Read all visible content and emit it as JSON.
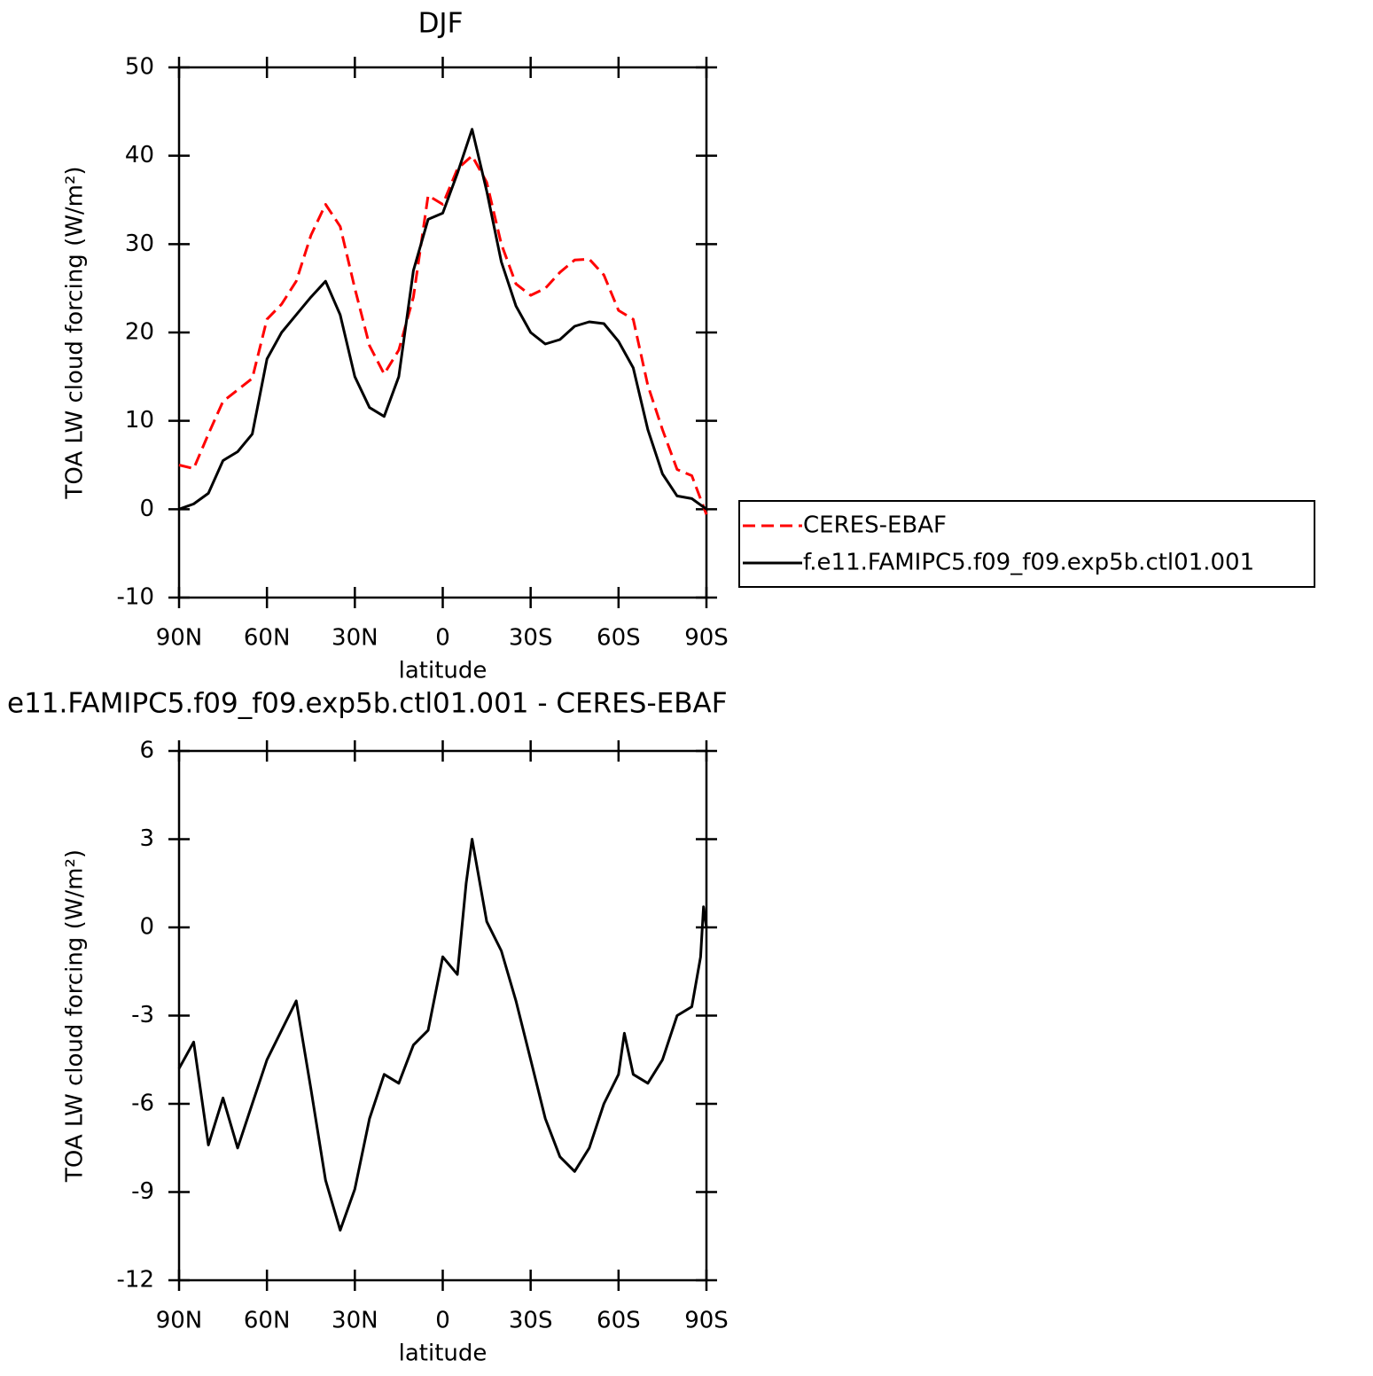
{
  "chart_data": [
    {
      "type": "line",
      "title": "DJF",
      "x_label": "latitude",
      "y_label": "TOA LW cloud forcing (W/m²)",
      "x": [
        90,
        85,
        80,
        75,
        70,
        65,
        60,
        55,
        50,
        45,
        40,
        35,
        30,
        25,
        20,
        15,
        10,
        5,
        0,
        -5,
        -10,
        -15,
        -20,
        -25,
        -30,
        -35,
        -40,
        -45,
        -50,
        -55,
        -60,
        -65,
        -70,
        -75,
        -80,
        -85,
        -90
      ],
      "series": [
        {
          "name": "CERES-EBAF",
          "color": "#ff0000",
          "dash": true,
          "values": [
            5,
            4.6,
            8.5,
            12.2,
            13.5,
            14.8,
            21.5,
            23.2,
            25.8,
            31,
            34.5,
            32,
            25,
            18.5,
            15.3,
            18,
            24,
            35.5,
            34.5,
            38.5,
            40,
            37,
            30,
            25.5,
            24.2,
            25,
            26.8,
            28.2,
            28.3,
            26.5,
            22.5,
            21.5,
            14,
            9,
            4.5,
            3.8,
            -0.6
          ]
        },
        {
          "name": "f.e11.FAMIPC5.f09_f09.exp5b.ctl01.001",
          "color": "#000000",
          "dash": false,
          "values": [
            0,
            0.6,
            1.8,
            5.5,
            6.5,
            8.5,
            17,
            20,
            22,
            24,
            25.8,
            22,
            15,
            11.5,
            10.5,
            15,
            27,
            32.8,
            33.5,
            38,
            43,
            36,
            28,
            23,
            20,
            18.7,
            19.2,
            20.7,
            21.2,
            21,
            19,
            16,
            9,
            4,
            1.5,
            1.2,
            0
          ]
        }
      ],
      "xlim": [
        90,
        -90
      ],
      "xticks": [
        {
          "value": 90,
          "label": "90N"
        },
        {
          "value": 60,
          "label": "60N"
        },
        {
          "value": 30,
          "label": "30N"
        },
        0,
        {
          "value": -30,
          "label": "30S"
        },
        {
          "value": -60,
          "label": "60S"
        },
        {
          "value": -90,
          "label": "90S"
        }
      ],
      "ylim": [
        -10,
        50
      ],
      "yticks": [
        -10,
        0,
        10,
        20,
        30,
        40,
        50
      ],
      "legend": "right"
    },
    {
      "type": "line",
      "title": "e11.FAMIPC5.f09_f09.exp5b.ctl01.001 - CERES-EBAF",
      "x_label": "latitude",
      "y_label": "TOA LW cloud forcing (W/m²)",
      "x": [
        90,
        85,
        80,
        75,
        70,
        65,
        60,
        55,
        50,
        45,
        40,
        35,
        30,
        25,
        20,
        15,
        10,
        5,
        0,
        -5,
        -8,
        -10,
        -15,
        -20,
        -25,
        -30,
        -35,
        -40,
        -45,
        -50,
        -55,
        -60,
        -62,
        -65,
        -70,
        -75,
        -80,
        -85,
        -88,
        -89,
        -90
      ],
      "color": "#000000",
      "values": [
        -4.8,
        -3.9,
        -7.4,
        -5.8,
        -7.5,
        -6,
        -4.5,
        -3.5,
        -2.5,
        -5.5,
        -8.6,
        -10.3,
        -8.9,
        -6.5,
        -5,
        -5.3,
        -4,
        -3.5,
        -1,
        -1.6,
        1.5,
        3,
        0.2,
        -0.8,
        -2.5,
        -4.5,
        -6.5,
        -7.8,
        -8.3,
        -7.5,
        -6,
        -5,
        -3.6,
        -5,
        -5.3,
        -4.5,
        -3,
        -2.7,
        -1,
        0.7,
        0
      ],
      "xlim": [
        90,
        -90
      ],
      "xticks": [
        {
          "value": 90,
          "label": "90N"
        },
        {
          "value": 60,
          "label": "60N"
        },
        {
          "value": 30,
          "label": "30N"
        },
        0,
        {
          "value": -30,
          "label": "30S"
        },
        {
          "value": -60,
          "label": "60S"
        },
        {
          "value": -90,
          "label": "90S"
        }
      ],
      "ylim": [
        -12,
        6
      ],
      "yticks": [
        -12,
        -9,
        -6,
        -3,
        0,
        3,
        6
      ]
    }
  ]
}
